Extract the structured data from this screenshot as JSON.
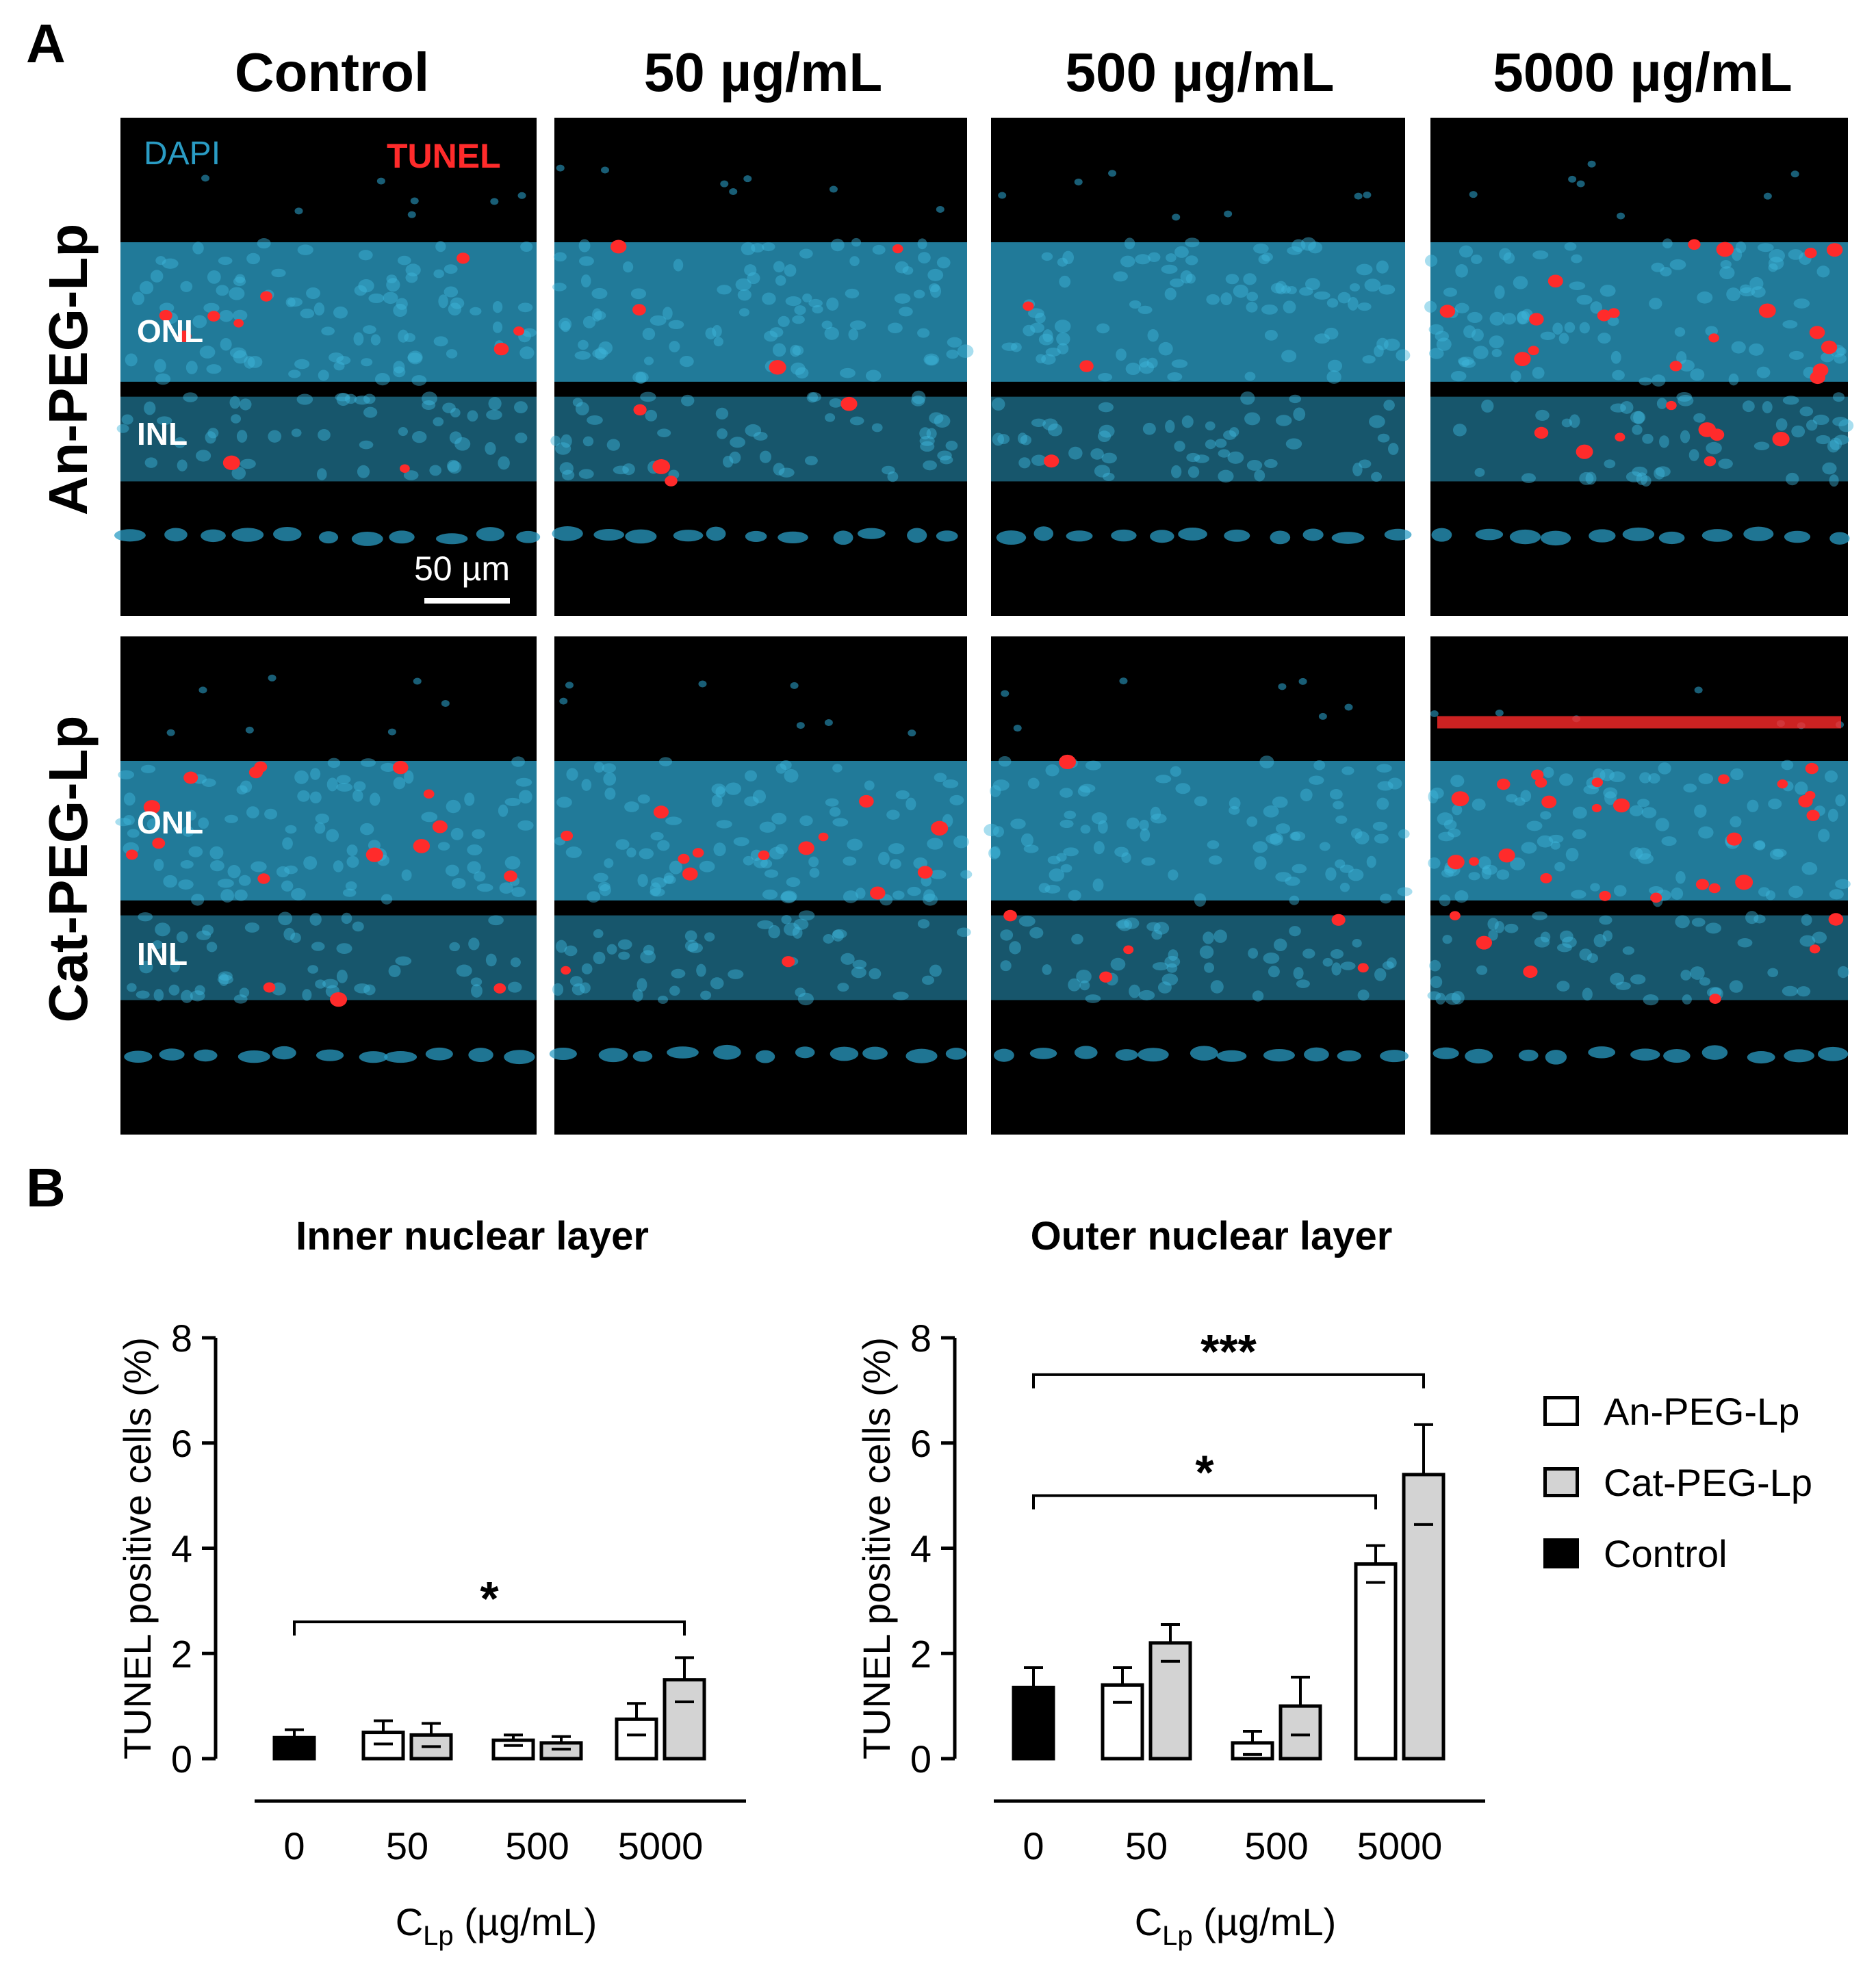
{
  "panel_a": {
    "letter": "A",
    "columns": [
      "Control",
      "50 µg/mL",
      "500 µg/mL",
      "5000 µg/mL"
    ],
    "rows": [
      "An-PEG-Lp",
      "Cat-PEG-Lp"
    ],
    "stain_labels": {
      "dapi": "DAPI",
      "tunel": "TUNEL"
    },
    "layer_labels": {
      "onl": "ONL",
      "inl": "INL"
    },
    "scale_bar": "50 µm",
    "colors": {
      "dapi": "#2a9cc4",
      "tunel": "#ff2b2b",
      "background": "#000000"
    }
  },
  "panel_b": {
    "letter": "B",
    "legend": [
      {
        "label": "An-PEG-Lp",
        "color": "#ffffff"
      },
      {
        "label": "Cat-PEG-Lp",
        "color": "#d3d3d3"
      },
      {
        "label": "Control",
        "color": "#000000"
      }
    ]
  },
  "chart_data": [
    {
      "type": "bar",
      "title": "Inner nuclear layer",
      "ylabel": "TUNEL positive cells (%)",
      "xlabel_main": "C",
      "xlabel_sub": "Lp",
      "xlabel_rest": " (µg/mL)",
      "categories": [
        "0",
        "50",
        "500",
        "5000"
      ],
      "ylim": [
        0,
        8
      ],
      "yticks": [
        "0",
        "2",
        "4",
        "6",
        "8"
      ],
      "series": [
        {
          "name": "Control",
          "values": [
            0.4,
            null,
            null,
            null
          ],
          "errors": [
            0.15,
            null,
            null,
            null
          ]
        },
        {
          "name": "An-PEG-Lp",
          "values": [
            null,
            0.5,
            0.35,
            0.75
          ],
          "errors": [
            null,
            0.22,
            0.1,
            0.3
          ]
        },
        {
          "name": "Cat-PEG-Lp",
          "values": [
            null,
            0.45,
            0.3,
            1.5
          ],
          "errors": [
            null,
            0.22,
            0.12,
            0.42
          ]
        }
      ],
      "significance": [
        {
          "label": "*",
          "from": "0",
          "to": "5000",
          "to_series": "Cat-PEG-Lp",
          "level": 2.6
        }
      ]
    },
    {
      "type": "bar",
      "title": "Outer nuclear layer",
      "ylabel": "TUNEL positive cells (%)",
      "xlabel_main": "C",
      "xlabel_sub": "Lp",
      "xlabel_rest": " (µg/mL)",
      "categories": [
        "0",
        "50",
        "500",
        "5000"
      ],
      "ylim": [
        0,
        8
      ],
      "yticks": [
        "0",
        "2",
        "4",
        "6",
        "8"
      ],
      "series": [
        {
          "name": "Control",
          "values": [
            1.35,
            null,
            null,
            null
          ],
          "errors": [
            0.38,
            null,
            null,
            null
          ]
        },
        {
          "name": "An-PEG-Lp",
          "values": [
            null,
            1.4,
            0.3,
            3.7
          ],
          "errors": [
            null,
            0.33,
            0.22,
            0.35
          ]
        },
        {
          "name": "Cat-PEG-Lp",
          "values": [
            null,
            2.2,
            1.0,
            5.4
          ],
          "errors": [
            null,
            0.35,
            0.55,
            0.95
          ]
        }
      ],
      "significance": [
        {
          "label": "*",
          "from": "0",
          "to": "5000",
          "to_series": "An-PEG-Lp",
          "level": 5.0
        },
        {
          "label": "***",
          "from": "0",
          "to": "5000",
          "to_series": "Cat-PEG-Lp",
          "level": 7.3
        }
      ]
    }
  ]
}
